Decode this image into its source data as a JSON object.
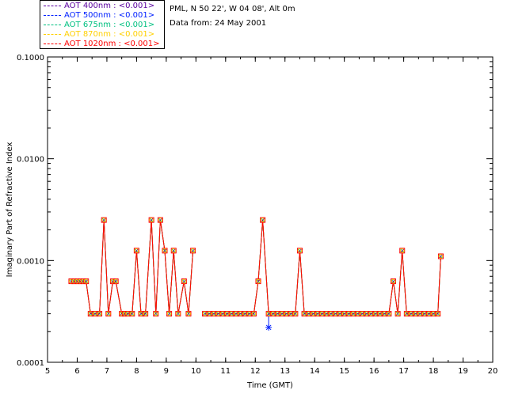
{
  "chart_data": {
    "type": "line",
    "xlabel": "Time (GMT)",
    "ylabel": "Imaginary Part of Refractive Index",
    "xlim": [
      5,
      20
    ],
    "ylim": [
      0.0001,
      0.1
    ],
    "y_scale": "log",
    "x_ticks": [
      "5",
      "6",
      "7",
      "8",
      "9",
      "10",
      "11",
      "12",
      "13",
      "14",
      "15",
      "16",
      "17",
      "18",
      "19",
      "20"
    ],
    "y_ticks": [
      {
        "value": 0.0001,
        "label": "0.0001"
      },
      {
        "value": 0.001,
        "label": "0.0010"
      },
      {
        "value": 0.01,
        "label": "0.0100"
      },
      {
        "value": 0.1,
        "label": "0.1000"
      }
    ],
    "legend_position": "top-left",
    "grid": false,
    "series": [
      {
        "name": "AOT  400nm : <0.001>",
        "color": "#5a00a0",
        "marker": "x"
      },
      {
        "name": "AOT  500nm : <0.001>",
        "color": "#0020ff",
        "marker": "star"
      },
      {
        "name": "AOT  675nm : <0.001>",
        "color": "#00c080",
        "marker": "x"
      },
      {
        "name": "AOT  870nm : <0.001>",
        "color": "#ffd000",
        "marker": "circle"
      },
      {
        "name": "AOT 1020nm : <0.001>",
        "color": "#ff0000",
        "marker": "square"
      }
    ],
    "x": [
      5.8,
      5.9,
      6.0,
      6.1,
      6.2,
      6.3,
      6.45,
      6.6,
      6.75,
      6.9,
      7.05,
      7.2,
      7.3,
      7.5,
      7.6,
      7.7,
      7.85,
      8.0,
      8.15,
      8.3,
      8.5,
      8.65,
      8.8,
      8.95,
      9.1,
      9.25,
      9.4,
      9.6,
      9.75,
      9.9,
      10.3,
      10.45,
      10.6,
      10.75,
      10.9,
      11.05,
      11.2,
      11.35,
      11.5,
      11.65,
      11.8,
      11.95,
      12.1,
      12.25,
      12.45,
      12.6,
      12.75,
      12.9,
      13.05,
      13.2,
      13.35,
      13.5,
      13.65,
      13.8,
      13.95,
      14.1,
      14.25,
      14.4,
      14.55,
      14.7,
      14.85,
      15.0,
      15.15,
      15.3,
      15.45,
      15.6,
      15.75,
      15.9,
      16.05,
      16.2,
      16.35,
      16.5,
      16.65,
      16.8,
      16.95,
      17.1,
      17.25,
      17.4,
      17.55,
      17.7,
      17.85,
      18.0,
      18.15,
      18.25
    ],
    "y": [
      0.000625,
      0.000625,
      0.000625,
      0.000625,
      0.000625,
      0.000625,
      0.0003,
      0.0003,
      0.0003,
      0.0025,
      0.0003,
      0.000625,
      0.000625,
      0.0003,
      0.0003,
      0.0003,
      0.0003,
      0.00125,
      0.0003,
      0.0003,
      0.0025,
      0.0003,
      0.0025,
      0.00125,
      0.0003,
      0.00125,
      0.0003,
      0.000625,
      0.0003,
      0.00125,
      0.0003,
      0.0003,
      0.0003,
      0.0003,
      0.0003,
      0.0003,
      0.0003,
      0.0003,
      0.0003,
      0.0003,
      0.0003,
      0.0003,
      0.000625,
      0.0025,
      0.0003,
      0.0003,
      0.0003,
      0.0003,
      0.0003,
      0.0003,
      0.0003,
      0.00125,
      0.0003,
      0.0003,
      0.0003,
      0.0003,
      0.0003,
      0.0003,
      0.0003,
      0.0003,
      0.0003,
      0.0003,
      0.0003,
      0.0003,
      0.0003,
      0.0003,
      0.0003,
      0.0003,
      0.0003,
      0.0003,
      0.0003,
      0.0003,
      0.000625,
      0.0003,
      0.00125,
      0.0003,
      0.0003,
      0.0003,
      0.0003,
      0.0003,
      0.0003,
      0.0003,
      0.0003,
      0.0011
    ],
    "outliers": [
      {
        "series": "AOT  500nm : <0.001>",
        "x": 12.45,
        "y": 0.00022
      }
    ]
  },
  "info": {
    "line1": "PML, N 50 22', W 04 08', Alt 0m",
    "line2": "Data from: 24 May 2001"
  }
}
